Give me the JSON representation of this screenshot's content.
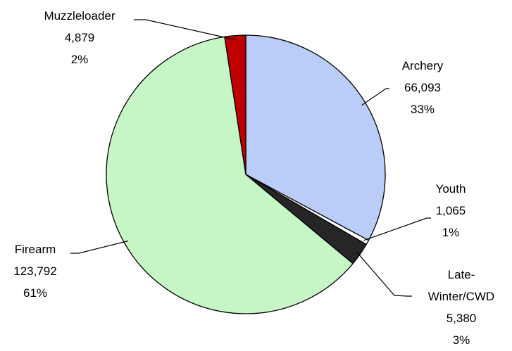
{
  "chart_data": {
    "type": "pie",
    "categories": [
      "Archery",
      "Youth",
      "Late-Winter/CWD",
      "Firearm",
      "Muzzleloader"
    ],
    "values": [
      66093,
      1065,
      5380,
      123792,
      4879
    ],
    "value_labels": [
      "66,093",
      "1,065",
      "5,380",
      "123,792",
      "4,879"
    ],
    "percent_labels": [
      "33%",
      "1%",
      "3%",
      "61%",
      "2%"
    ],
    "colors": [
      "#b9cdf8",
      "#ffffff",
      "#262626",
      "#c6f5c6",
      "#c00000"
    ]
  }
}
